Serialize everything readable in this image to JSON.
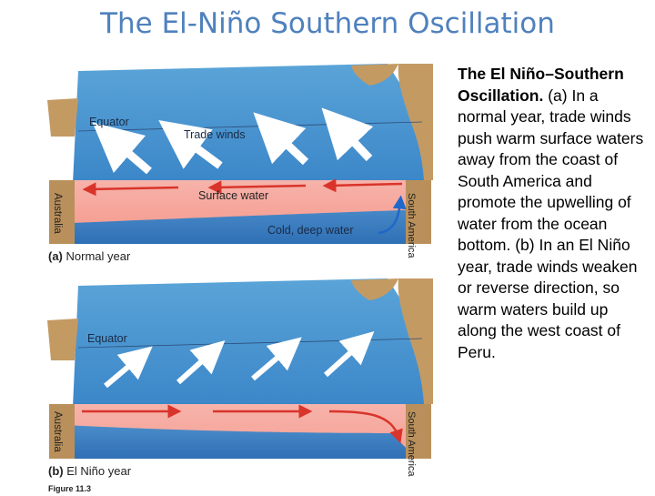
{
  "page": {
    "title": "The El-Niño Southern Oscillation"
  },
  "caption": {
    "lead": "The El Niño–Southern Oscillation.",
    "body": "(a) In a normal year, trade winds push warm surface waters away from the coast of South America and promote the upwelling of water from the ocean bottom. (b) In an El Niño year, trade winds weaken or reverse direction, so warm waters build up along the west coast of Peru."
  },
  "panel_a": {
    "letter": "(a)",
    "label": "Normal year",
    "equator": "Equator",
    "trade_winds": "Trade winds",
    "surface_water": "Surface water",
    "cold_water": "Cold, deep water",
    "left_land": "Australia",
    "right_land": "South America"
  },
  "panel_b": {
    "letter": "(b)",
    "label": "El Niño year",
    "equator": "Equator",
    "left_land": "Australia",
    "right_land": "South America"
  },
  "figure_caption": "Figure 11.3",
  "colors": {
    "title": "#4f81bd",
    "ocean_blue": "#2f6fb5",
    "warm_water": "#f4a6a0",
    "arrow_red": "#d9342b",
    "land": "#b88a52"
  }
}
